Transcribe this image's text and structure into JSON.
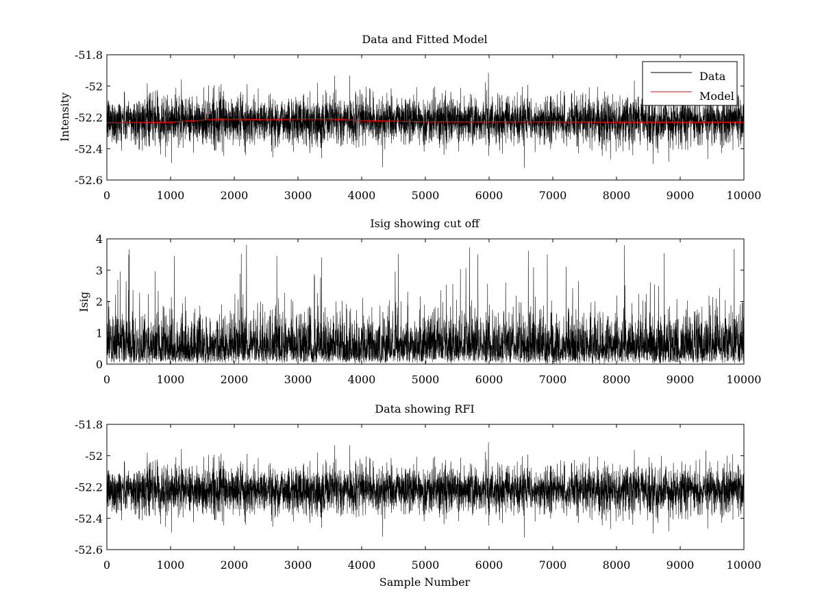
{
  "chart_data": [
    {
      "type": "line",
      "title": "Data and Fitted Model",
      "xlabel": "",
      "ylabel": "Intensity",
      "xlim": [
        0,
        10000
      ],
      "ylim": [
        -52.6,
        -51.8
      ],
      "xticks": [
        "0",
        "1000",
        "2000",
        "3000",
        "4000",
        "5000",
        "6000",
        "7000",
        "8000",
        "9000",
        "10000"
      ],
      "yticks": [
        "-51.8",
        "-52",
        "-52.2",
        "-52.4",
        "-52.6"
      ],
      "ytick_values": [
        -51.8,
        -52.0,
        -52.2,
        -52.4,
        -52.6
      ],
      "legend": {
        "placement": "top-right",
        "entries": [
          "Data",
          "Model"
        ]
      },
      "series": [
        {
          "name": "Data",
          "color": "#000000",
          "n_samples": 10000,
          "center": -52.22,
          "spread_low": -52.47,
          "spread_high": -51.95,
          "extreme_low": -52.53,
          "extreme_high": -51.9
        },
        {
          "name": "Model",
          "color": "#ff0000",
          "x": [
            0,
            1000,
            1600,
            2000,
            2500,
            3000,
            3500,
            4000,
            5000,
            6000,
            7000,
            8000,
            9000,
            10000
          ],
          "values": [
            -52.235,
            -52.23,
            -52.215,
            -52.21,
            -52.215,
            -52.21,
            -52.21,
            -52.22,
            -52.228,
            -52.228,
            -52.228,
            -52.23,
            -52.23,
            -52.23
          ]
        }
      ]
    },
    {
      "type": "line",
      "title": "Isig showing cut off",
      "xlabel": "",
      "ylabel": "Isig",
      "xlim": [
        0,
        10000
      ],
      "ylim": [
        0,
        4
      ],
      "xticks": [
        "0",
        "1000",
        "2000",
        "3000",
        "4000",
        "5000",
        "6000",
        "7000",
        "8000",
        "9000",
        "10000"
      ],
      "yticks": [
        "4",
        "3",
        "2",
        "1",
        "0"
      ],
      "ytick_values": [
        4,
        3,
        2,
        1,
        0
      ],
      "series": [
        {
          "color": "#000000",
          "n_samples": 10000,
          "spread_low": 0,
          "spread_high": 2.2,
          "extreme_high": 4.0
        }
      ]
    },
    {
      "type": "line",
      "title": "Data showing RFI",
      "xlabel": "Sample Number",
      "ylabel": "",
      "xlim": [
        0,
        10000
      ],
      "ylim": [
        -52.6,
        -51.8
      ],
      "xticks": [
        "0",
        "1000",
        "2000",
        "3000",
        "4000",
        "5000",
        "6000",
        "7000",
        "8000",
        "9000",
        "10000"
      ],
      "yticks": [
        "-51.8",
        "-52",
        "-52.2",
        "-52.4",
        "-52.6"
      ],
      "ytick_values": [
        -51.8,
        -52.0,
        -52.2,
        -52.4,
        -52.6
      ],
      "series": [
        {
          "color": "#000000",
          "n_samples": 10000,
          "center": -52.22,
          "spread_low": -52.47,
          "spread_high": -51.95,
          "extreme_low": -52.53,
          "extreme_high": -51.9
        }
      ]
    }
  ]
}
